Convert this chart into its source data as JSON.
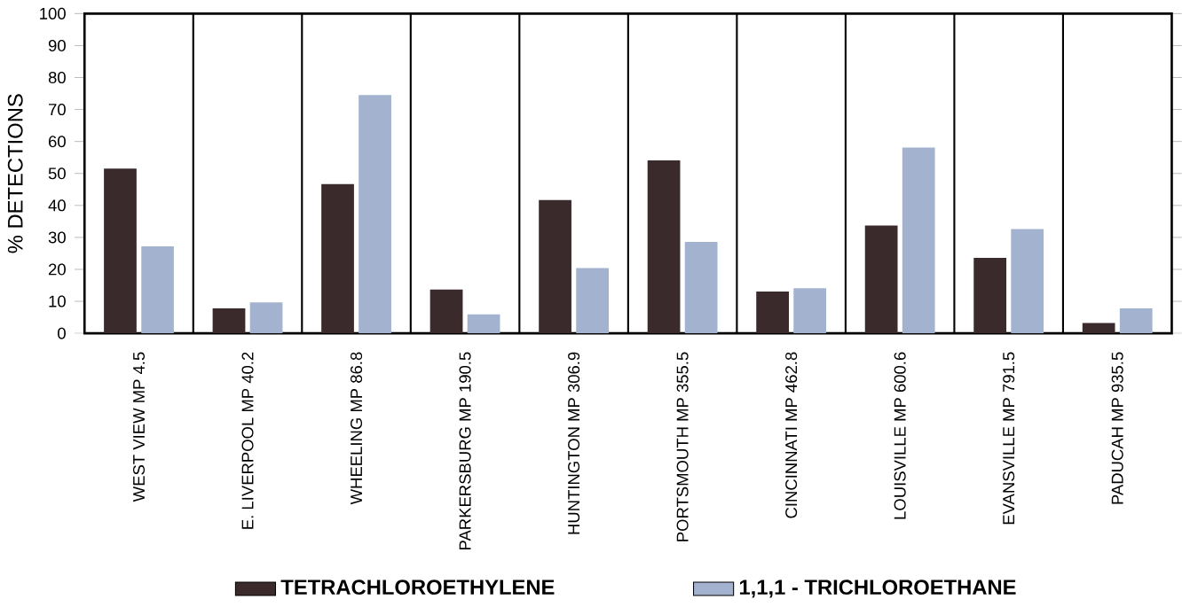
{
  "chart_data": {
    "type": "bar",
    "ylabel": "% DETECTIONS",
    "categories": [
      "WEST VIEW MP 4.5",
      "E. LIVERPOOL MP 40.2",
      "WHEELING MP 86.8",
      "PARKERSBURG MP 190.5",
      "HUNTINGTON MP 306.9",
      "PORTSMOUTH MP 355.5",
      "CINCINNATI MP 462.8",
      "LOUISVILLE MP 600.6",
      "EVANSVILLE MP 791.5",
      "PADUCAH MP 935.5"
    ],
    "series": [
      {
        "name": "TETRACHLOROETHYLENE",
        "color": "#3a2a2c",
        "values": [
          51.5,
          7.8,
          46.7,
          13.7,
          41.7,
          54.1,
          13.1,
          33.7,
          23.6,
          3.2
        ]
      },
      {
        "name": "1,1,1 - TRICHLOROETHANE",
        "color": "#a3b3cf",
        "values": [
          27.2,
          9.7,
          74.5,
          5.9,
          20.4,
          28.6,
          14.1,
          58.1,
          32.6,
          7.8
        ]
      }
    ],
    "ylim": [
      0,
      100
    ],
    "yticks": [
      0,
      10,
      20,
      30,
      40,
      50,
      60,
      70,
      80,
      90,
      100
    ],
    "grid": "x",
    "legend": "bottom"
  }
}
